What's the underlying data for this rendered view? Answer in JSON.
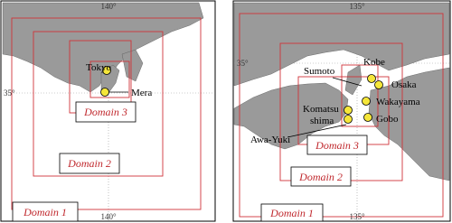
{
  "panels": [
    {
      "ticks": {
        "top": "140°",
        "bottom": "140°",
        "left": "35°"
      },
      "places": [
        "Tokyo",
        "Mera"
      ],
      "domains": [
        "Domain 3",
        "Domain 2",
        "Domain 1"
      ]
    },
    {
      "ticks": {
        "top": "135°",
        "bottom": "135°",
        "left": "35°"
      },
      "places": [
        "Sumoto",
        "Kobe",
        "Osaka",
        "Komatsu",
        "shima",
        "Wakayama",
        "Gobo",
        "Awa-Yuki"
      ],
      "domains": [
        "Domain 3",
        "Domain 2",
        "Domain 1"
      ]
    }
  ]
}
